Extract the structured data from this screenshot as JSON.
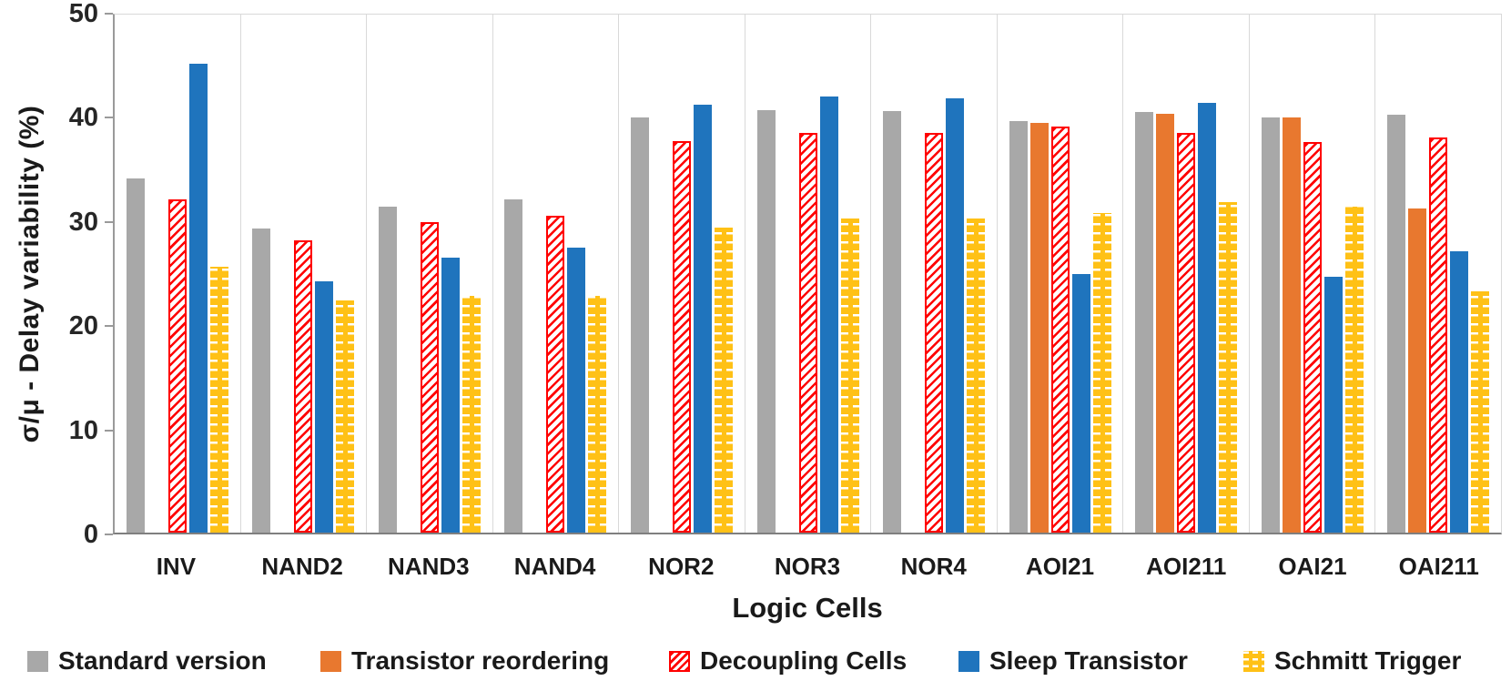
{
  "chart_data": {
    "type": "bar",
    "title": "",
    "xlabel": "Logic Cells",
    "ylabel": "σ/μ  - Delay variability (%)",
    "ylim": [
      0,
      50
    ],
    "y_ticks": [
      0,
      10,
      20,
      30,
      40,
      50
    ],
    "grid": "vertical category separators, light gray",
    "legend_position": "bottom",
    "categories": [
      "INV",
      "NAND2",
      "NAND3",
      "NAND4",
      "NOR2",
      "NOR3",
      "NOR4",
      "AOI21",
      "AOI211",
      "OAI21",
      "OAI211"
    ],
    "series": [
      {
        "name": "Standard version",
        "color": "#A8A8A8",
        "pattern": "solid",
        "values": [
          34.0,
          29.2,
          31.3,
          32.0,
          39.9,
          40.6,
          40.5,
          39.5,
          40.4,
          39.9,
          40.1
        ]
      },
      {
        "name": "Transistor reordering",
        "color": "#E8782F",
        "pattern": "solid",
        "values": [
          null,
          null,
          null,
          null,
          null,
          null,
          null,
          39.3,
          40.2,
          39.9,
          31.1
        ]
      },
      {
        "name": "Decoupling Cells",
        "color": "#FF0000",
        "pattern": "diagonal-hatch",
        "values": [
          32.0,
          28.1,
          29.8,
          30.4,
          37.6,
          38.4,
          38.4,
          39.0,
          38.4,
          37.5,
          37.9
        ]
      },
      {
        "name": "Sleep Transistor",
        "color": "#1F74BD",
        "pattern": "solid",
        "values": [
          45.0,
          24.1,
          26.4,
          27.4,
          41.1,
          41.9,
          41.7,
          24.8,
          41.3,
          24.6,
          27.0
        ]
      },
      {
        "name": "Schmitt Trigger",
        "color": "#FFC116",
        "pattern": "dashed-rows",
        "values": [
          25.5,
          22.3,
          22.7,
          22.7,
          29.3,
          30.2,
          30.2,
          30.7,
          31.7,
          31.3,
          23.2
        ]
      }
    ],
    "legend_x_positions": [
      30,
      352,
      735,
      1053,
      1366
    ]
  }
}
